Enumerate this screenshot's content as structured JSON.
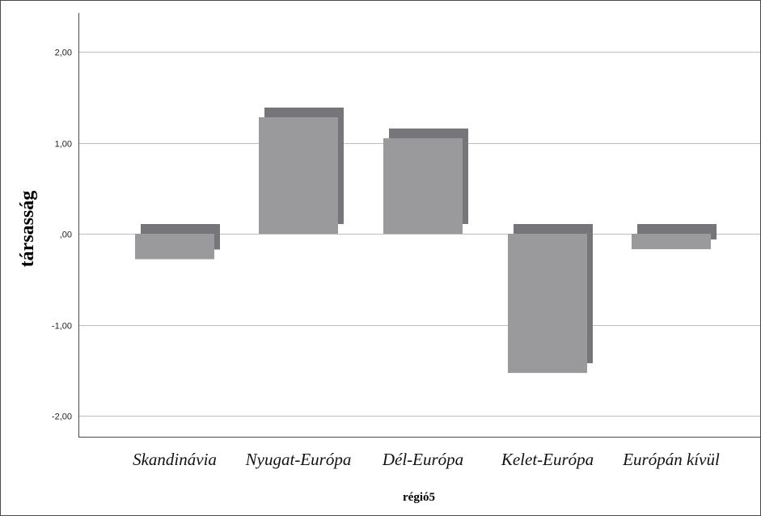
{
  "chart_data": {
    "type": "bar",
    "style": "3d-shadow",
    "categories": [
      "Skandinávia",
      "Nyugat-Európa",
      "Dél-Európa",
      "Kelet-Európa",
      "Európán kívül"
    ],
    "values": [
      -0.28,
      1.28,
      1.05,
      -1.53,
      -0.17
    ],
    "ylabel": "társasság",
    "xlabel": "régió5",
    "ylim": [
      -2.2,
      2.4
    ],
    "yticks": [
      2.0,
      1.0,
      0.0,
      -1.0,
      -2.0
    ],
    "ytick_labels": [
      "2,00",
      "1,00",
      ",00",
      "-1,00",
      "-2,00"
    ],
    "grid": true,
    "legend": "none",
    "colors": {
      "bar_front": "#9a9a9c",
      "bar_shadow": "#76767a",
      "grid": "#bdbdbd",
      "axis": "#4a4a4a"
    }
  }
}
